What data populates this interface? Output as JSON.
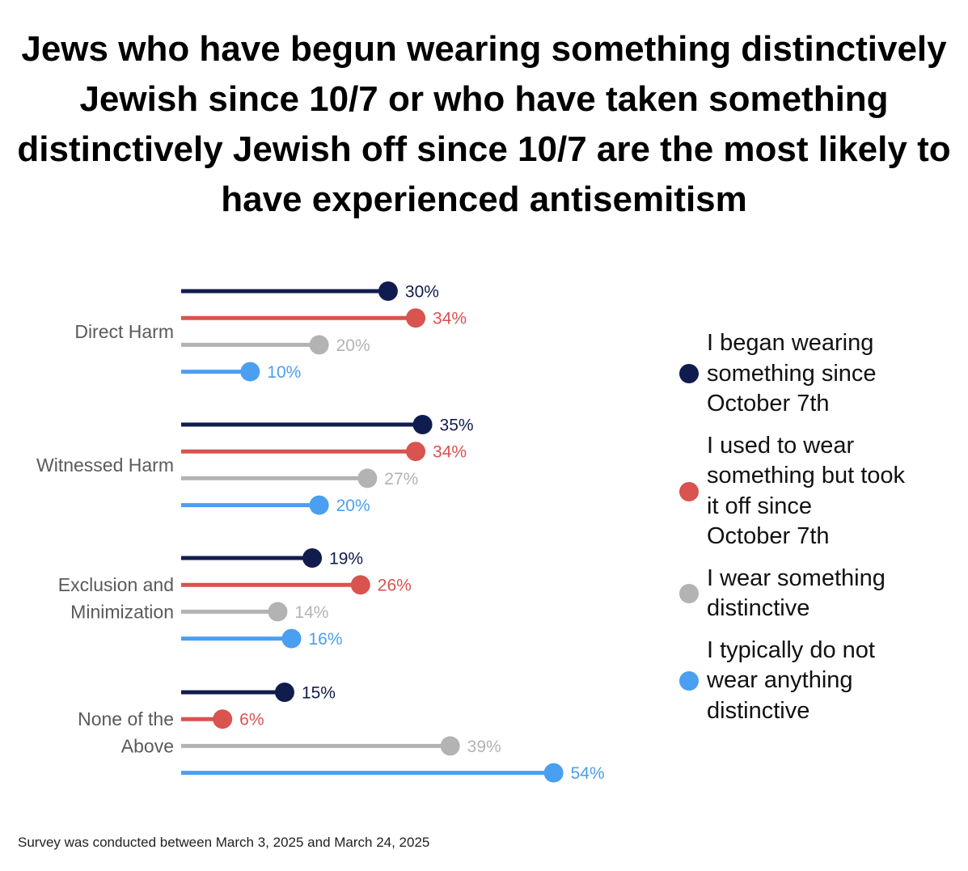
{
  "chart_data": {
    "type": "dot-plot",
    "title": "Jews who have begun wearing something distinctively Jewish since 10/7 or who have taken something distinctively Jewish off since 10/7 are the most likely to have experienced antisemitism",
    "categories": [
      "Direct Harm",
      "Witnessed Harm",
      "Exclusion and Minimization",
      "None of the Above"
    ],
    "series": [
      {
        "name": "I began wearing something since October 7th",
        "color": "#111c4e",
        "values": [
          30,
          35,
          19,
          15
        ]
      },
      {
        "name": "I used to wear something but took it off since October 7th",
        "color": "#d9534f",
        "values": [
          34,
          34,
          26,
          6
        ]
      },
      {
        "name": "I wear something distinctive",
        "color": "#b3b3b3",
        "values": [
          20,
          27,
          14,
          39
        ]
      },
      {
        "name": "I typically do not wear anything distinctive",
        "color": "#4b9ff0",
        "values": [
          10,
          20,
          16,
          54
        ]
      }
    ],
    "value_labels": [
      [
        "30%",
        "35%",
        "19%",
        "15%"
      ],
      [
        "34%",
        "34%",
        "26%",
        "6%"
      ],
      [
        "20%",
        "27%",
        "14%",
        "39%"
      ],
      [
        "10%",
        "20%",
        "16%",
        "54%"
      ]
    ],
    "xlim": [
      0,
      54
    ],
    "grid": false,
    "legend_position": "right"
  },
  "footnote": "Survey was conducted between March 3, 2025 and March 24, 2025"
}
